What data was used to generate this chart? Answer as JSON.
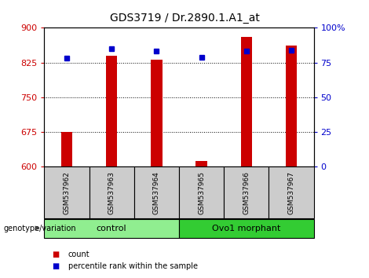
{
  "title": "GDS3719 / Dr.2890.1.A1_at",
  "samples": [
    "GSM537962",
    "GSM537963",
    "GSM537964",
    "GSM537965",
    "GSM537966",
    "GSM537967"
  ],
  "counts": [
    675,
    840,
    832,
    613,
    880,
    862
  ],
  "percentiles": [
    78,
    85,
    83,
    79,
    83,
    84
  ],
  "ymin": 600,
  "ymax": 900,
  "yticks": [
    600,
    675,
    750,
    825,
    900
  ],
  "right_yticks": [
    0,
    25,
    50,
    75,
    100
  ],
  "right_yticklabels": [
    "0",
    "25",
    "50",
    "75",
    "100%"
  ],
  "bar_color": "#cc0000",
  "dot_color": "#0000cc",
  "bar_width": 0.25,
  "groups": [
    {
      "label": "control",
      "indices": [
        0,
        1,
        2
      ],
      "color": "#90ee90"
    },
    {
      "label": "Ovo1 morphant",
      "indices": [
        3,
        4,
        5
      ],
      "color": "#33cc33"
    }
  ],
  "xlabel_genotype": "genotype/variation",
  "legend_count": "count",
  "legend_percentile": "percentile rank within the sample",
  "bg_color": "#ffffff",
  "plot_bg": "#ffffff",
  "tick_label_color_left": "#cc0000",
  "tick_label_color_right": "#0000cc",
  "title_fontsize": 10,
  "tick_fontsize": 8,
  "sample_area_color": "#cccccc",
  "gridline_yticks": [
    675,
    750,
    825
  ]
}
